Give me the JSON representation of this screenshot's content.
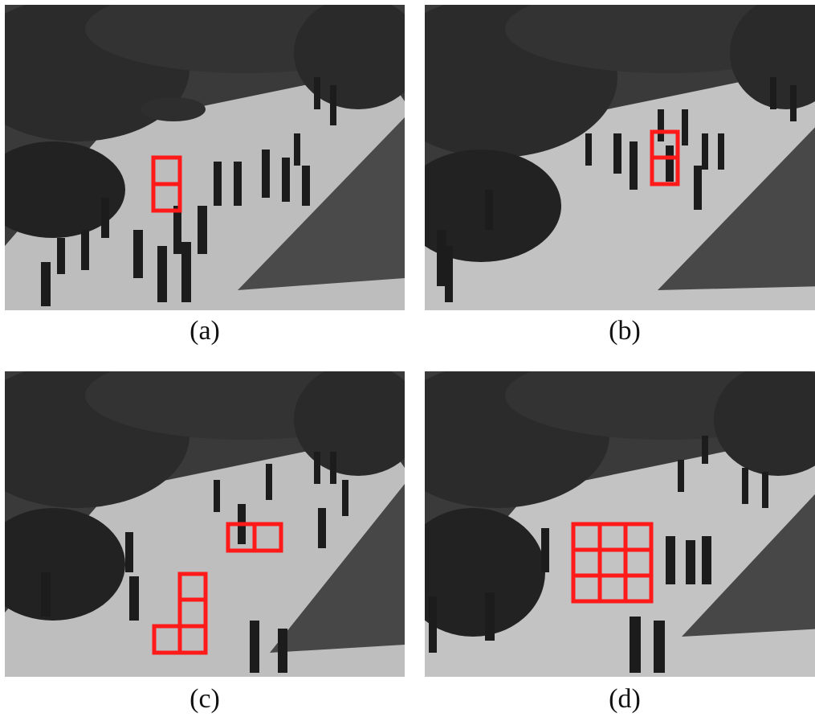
{
  "figure": {
    "box_color": "#ff1a1a",
    "panels": [
      {
        "id": "a",
        "caption": "(a)"
      },
      {
        "id": "b",
        "caption": "(b)"
      },
      {
        "id": "c",
        "caption": "(c)"
      },
      {
        "id": "d",
        "caption": "(d)"
      }
    ]
  }
}
